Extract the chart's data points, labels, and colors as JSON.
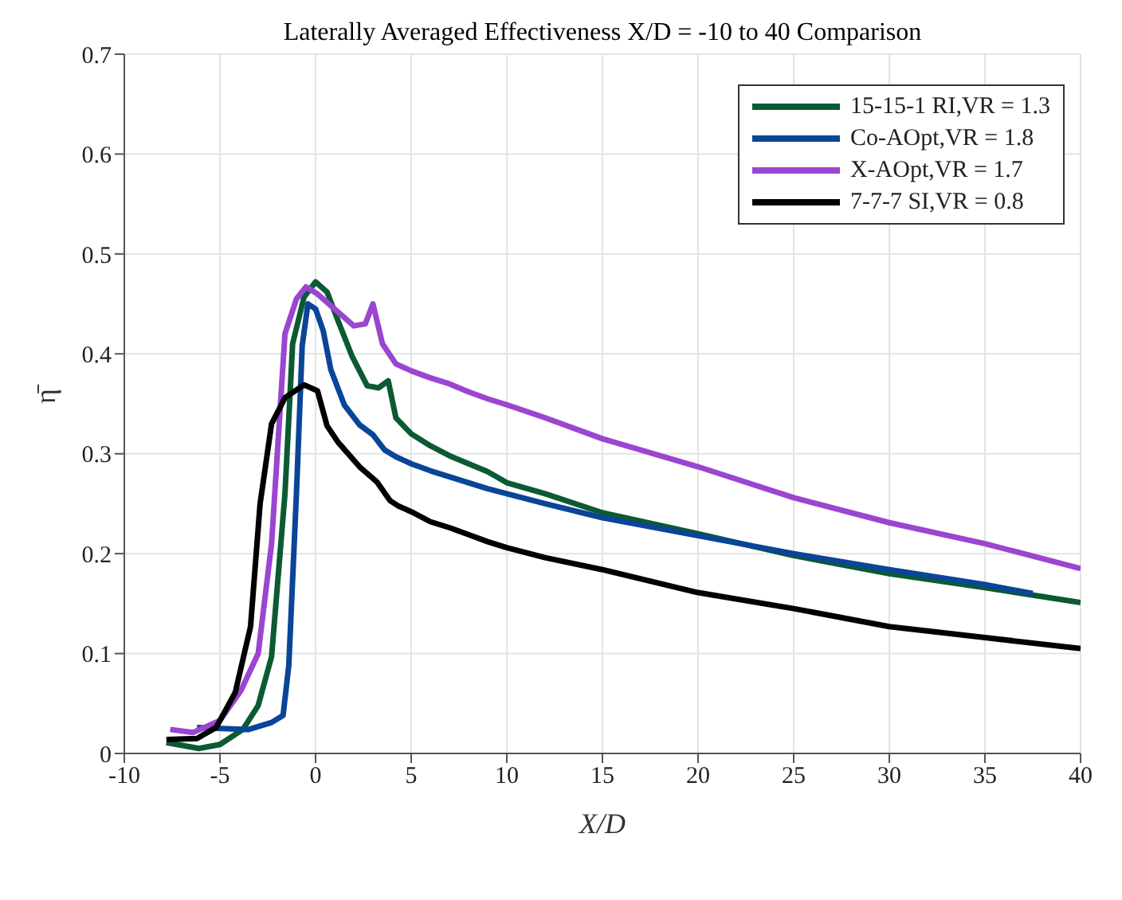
{
  "chart_data": {
    "type": "line",
    "title": "Laterally Averaged Effectiveness X/D = -10 to 40 Comparison",
    "xlabel": "X/D",
    "ylabel": "η̄",
    "xlim": [
      -10,
      40
    ],
    "xticks": [
      -10,
      -5,
      0,
      5,
      10,
      15,
      20,
      25,
      30,
      35,
      40
    ],
    "ylim": [
      0,
      0.7
    ],
    "yticks": [
      0,
      0.1,
      0.2,
      0.3,
      0.4,
      0.5,
      0.6,
      0.7
    ],
    "grid": true,
    "legend": "top right",
    "marker": "none",
    "line_style": "solid",
    "series": [
      {
        "name": "15-15-1 RI,VR = 1.3",
        "color": "#0b5a32",
        "x": [
          -7.8,
          -6.1,
          -5,
          -3.8,
          -3,
          -2.3,
          -1.6,
          -1.2,
          -0.6,
          0,
          0.6,
          1.2,
          1.9,
          2.7,
          3.3,
          3.8,
          4.2,
          5,
          6,
          7,
          8,
          9,
          10,
          12,
          15,
          20,
          25,
          30,
          35,
          40
        ],
        "values": [
          0.011,
          0.005,
          0.009,
          0.024,
          0.048,
          0.097,
          0.26,
          0.41,
          0.457,
          0.472,
          0.462,
          0.432,
          0.398,
          0.368,
          0.366,
          0.373,
          0.336,
          0.32,
          0.308,
          0.298,
          0.29,
          0.282,
          0.271,
          0.26,
          0.241,
          0.22,
          0.198,
          0.18,
          0.166,
          0.151
        ]
      },
      {
        "name": "Co-AOpt,VR = 1.8",
        "color": "#0a4597",
        "x": [
          -6.2,
          -3.5,
          -2.3,
          -1.7,
          -1.4,
          -1,
          -0.7,
          -0.4,
          0,
          0.4,
          0.8,
          1.5,
          2.3,
          3,
          3.6,
          4.2,
          5,
          6,
          7,
          8,
          9,
          10,
          12,
          15,
          20,
          25,
          30,
          35,
          37.5
        ],
        "values": [
          0.026,
          0.024,
          0.031,
          0.038,
          0.088,
          0.26,
          0.408,
          0.45,
          0.445,
          0.423,
          0.384,
          0.349,
          0.329,
          0.319,
          0.304,
          0.297,
          0.29,
          0.283,
          0.277,
          0.271,
          0.265,
          0.26,
          0.25,
          0.236,
          0.218,
          0.2,
          0.184,
          0.169,
          0.16
        ]
      },
      {
        "name": "X-AOpt,VR = 1.7",
        "color": "#9a46d0",
        "x": [
          -7.6,
          -6.4,
          -5,
          -3.9,
          -3,
          -2.3,
          -1.6,
          -1,
          -0.5,
          0.1,
          2,
          2.6,
          3,
          3.5,
          4.2,
          5,
          6,
          7,
          8,
          9,
          10,
          12,
          15,
          20,
          25,
          30,
          35,
          40
        ],
        "values": [
          0.024,
          0.021,
          0.033,
          0.063,
          0.1,
          0.21,
          0.42,
          0.455,
          0.467,
          0.46,
          0.428,
          0.43,
          0.45,
          0.41,
          0.39,
          0.383,
          0.376,
          0.37,
          0.362,
          0.355,
          0.349,
          0.336,
          0.315,
          0.287,
          0.256,
          0.231,
          0.21,
          0.185
        ]
      },
      {
        "name": "7-7-7 SI,VR = 0.8",
        "color": "#000000",
        "x": [
          -7.8,
          -6.2,
          -5.2,
          -4.2,
          -3.4,
          -2.9,
          -2.3,
          -1.6,
          -0.6,
          0.1,
          0.6,
          1.2,
          2.3,
          3.2,
          3.9,
          4.3,
          5,
          6,
          7,
          8,
          9,
          10,
          12,
          15,
          20,
          25,
          30,
          35,
          40
        ],
        "values": [
          0.014,
          0.015,
          0.026,
          0.061,
          0.127,
          0.25,
          0.33,
          0.356,
          0.369,
          0.363,
          0.328,
          0.311,
          0.287,
          0.272,
          0.253,
          0.248,
          0.242,
          0.232,
          0.226,
          0.219,
          0.212,
          0.206,
          0.196,
          0.184,
          0.161,
          0.145,
          0.127,
          0.116,
          0.105
        ]
      }
    ]
  }
}
